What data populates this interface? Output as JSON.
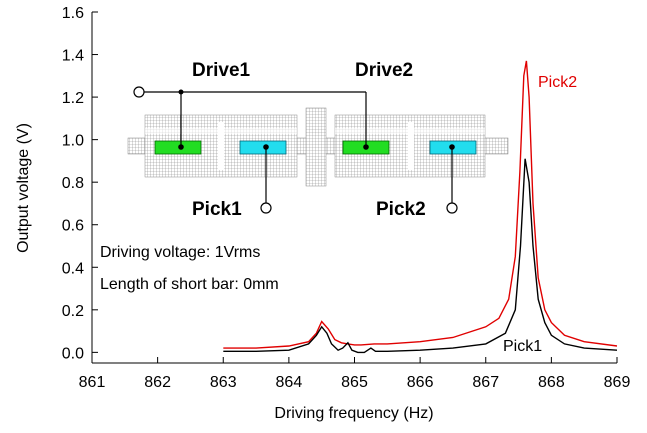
{
  "chart_data": {
    "type": "line",
    "xlabel": "Driving frequency (Hz)",
    "ylabel": "Output voltage (V)",
    "xlim": [
      861,
      869
    ],
    "ylim": [
      -0.05,
      1.6
    ],
    "xticks": [
      "861",
      "862",
      "863",
      "864",
      "865",
      "866",
      "867",
      "868",
      "869"
    ],
    "yticks": [
      "0.0",
      "0.2",
      "0.4",
      "0.6",
      "0.8",
      "1.0",
      "1.2",
      "1.4",
      "1.6"
    ],
    "grid": false,
    "series": [
      {
        "name": "Pick2",
        "color": "#e00000",
        "x": [
          863.0,
          863.5,
          864.0,
          864.3,
          864.42,
          864.5,
          864.6,
          864.7,
          864.8,
          864.9,
          865.0,
          865.1,
          865.3,
          865.5,
          866.0,
          866.5,
          867.0,
          867.2,
          867.35,
          867.45,
          867.52,
          867.58,
          867.62,
          867.66,
          867.72,
          867.8,
          867.9,
          868.0,
          868.2,
          868.5,
          869.0
        ],
        "y": [
          0.02,
          0.02,
          0.03,
          0.05,
          0.09,
          0.145,
          0.11,
          0.06,
          0.045,
          0.04,
          0.035,
          0.035,
          0.04,
          0.04,
          0.05,
          0.07,
          0.12,
          0.16,
          0.25,
          0.45,
          0.85,
          1.3,
          1.37,
          1.2,
          0.7,
          0.35,
          0.2,
          0.14,
          0.08,
          0.05,
          0.03
        ]
      },
      {
        "name": "Pick1",
        "color": "#000000",
        "x": [
          863.0,
          863.5,
          864.0,
          864.3,
          864.42,
          864.5,
          864.58,
          864.65,
          864.75,
          864.82,
          864.9,
          864.96,
          865.05,
          865.15,
          865.25,
          865.32,
          865.5,
          866.0,
          866.5,
          867.0,
          867.3,
          867.45,
          867.53,
          867.6,
          867.66,
          867.72,
          867.8,
          867.9,
          868.0,
          868.2,
          868.5,
          869.0
        ],
        "y": [
          0.005,
          0.005,
          0.01,
          0.04,
          0.08,
          0.12,
          0.09,
          0.04,
          0.01,
          0.02,
          0.045,
          0.01,
          0.0,
          0.0,
          0.02,
          0.005,
          0.005,
          0.01,
          0.02,
          0.04,
          0.09,
          0.2,
          0.5,
          0.91,
          0.8,
          0.5,
          0.25,
          0.14,
          0.08,
          0.04,
          0.02,
          0.01
        ]
      }
    ],
    "annotations": {
      "pick2": "Pick2",
      "pick1": "Pick1",
      "driving_voltage": "Driving voltage: 1Vrms",
      "short_bar": "Length of short bar: 0mm",
      "drive1": "Drive1",
      "drive2": "Drive2",
      "inset_pick1": "Pick1",
      "inset_pick2": "Pick2"
    },
    "colors": {
      "drive_electrode": "#22dd22",
      "pick_electrode": "#22ddee",
      "mesh": "#b0b0b0"
    }
  }
}
